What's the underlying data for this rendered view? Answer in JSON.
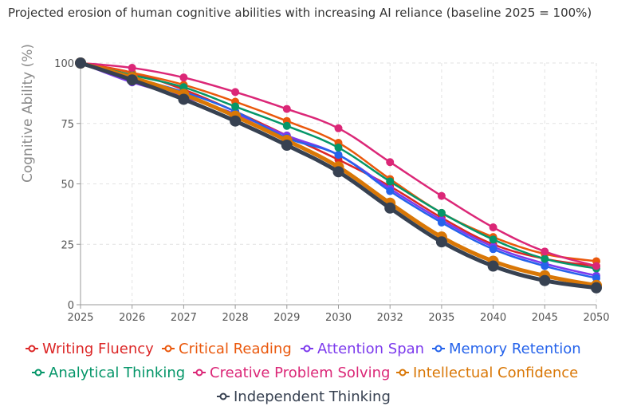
{
  "chart_data": {
    "type": "line",
    "title": "Projected erosion of human cognitive abilities with increasing AI reliance (baseline 2025 = 100%)",
    "xlabel": "",
    "ylabel": "Cognitive Ability (%)",
    "ylim": [
      0,
      100
    ],
    "yticks": [
      "0",
      "25",
      "50",
      "75",
      "100"
    ],
    "ytick_values": [
      0,
      25,
      50,
      75,
      100
    ],
    "categories": [
      "2025",
      "2026",
      "2027",
      "2028",
      "2029",
      "2030",
      "2032",
      "2035",
      "2040",
      "2045",
      "2050"
    ],
    "grid": true,
    "legend_position": "bottom",
    "series": [
      {
        "name": "Writing Fluency",
        "color": "#dc2626",
        "values": [
          100,
          96,
          89,
          80,
          70,
          60,
          49,
          36,
          25,
          19,
          16
        ]
      },
      {
        "name": "Critical Reading",
        "color": "#ea580c",
        "values": [
          100,
          96,
          91,
          84,
          76,
          67,
          52,
          38,
          28,
          21,
          18
        ]
      },
      {
        "name": "Attention Span",
        "color": "#7c3aed",
        "values": [
          100,
          92,
          86,
          79,
          70,
          62,
          48,
          35,
          24,
          17,
          12
        ]
      },
      {
        "name": "Memory Retention",
        "color": "#2563eb",
        "values": [
          100,
          94,
          88,
          80,
          69,
          62,
          47,
          34,
          23,
          16,
          11
        ]
      },
      {
        "name": "Analytical Thinking",
        "color": "#059669",
        "values": [
          100,
          95,
          90,
          82,
          74,
          65,
          51,
          38,
          27,
          19,
          15
        ]
      },
      {
        "name": "Creative Problem Solving",
        "color": "#db2777",
        "values": [
          100,
          98,
          94,
          88,
          81,
          73,
          59,
          45,
          32,
          22,
          16
        ]
      },
      {
        "name": "Intellectual Confidence",
        "color": "#d97706",
        "values": [
          100,
          94,
          87,
          78,
          68,
          57,
          42,
          28,
          18,
          12,
          8
        ]
      },
      {
        "name": "Independent Thinking",
        "color": "#374151",
        "values": [
          100,
          93,
          85,
          76,
          66,
          55,
          40,
          26,
          16,
          10,
          7
        ]
      }
    ]
  }
}
